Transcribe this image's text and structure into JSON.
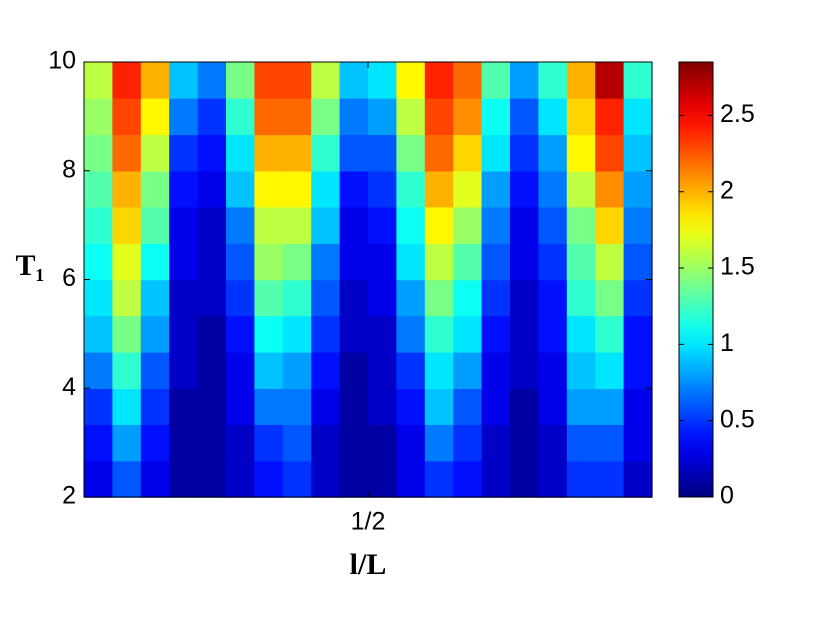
{
  "chart_data": {
    "type": "heatmap",
    "xlabel": "l/L",
    "ylabel": "T₁",
    "xlim": [
      0,
      1
    ],
    "ylim": [
      2,
      10
    ],
    "xticks": [
      {
        "value": 0.5,
        "label": "1/2"
      }
    ],
    "yticks": [
      2,
      4,
      6,
      8,
      10
    ],
    "x": [
      0.025,
      0.075,
      0.125,
      0.175,
      0.225,
      0.275,
      0.325,
      0.375,
      0.425,
      0.475,
      0.525,
      0.575,
      0.625,
      0.675,
      0.725,
      0.775,
      0.825,
      0.875,
      0.925,
      0.975
    ],
    "y": [
      2.33,
      3,
      3.67,
      4.33,
      5,
      5.67,
      6.33,
      7,
      7.67,
      8.33,
      9,
      9.67
    ],
    "z": [
      [
        0.3,
        0.6,
        0.3,
        0.1,
        0.1,
        0.2,
        0.4,
        0.5,
        0.2,
        0.1,
        0.1,
        0.3,
        0.5,
        0.4,
        0.2,
        0.1,
        0.2,
        0.5,
        0.5,
        0.2
      ],
      [
        0.4,
        0.8,
        0.4,
        0.1,
        0.1,
        0.2,
        0.5,
        0.6,
        0.2,
        0.1,
        0.1,
        0.3,
        0.7,
        0.5,
        0.2,
        0.1,
        0.2,
        0.6,
        0.6,
        0.3
      ],
      [
        0.5,
        1.0,
        0.5,
        0.1,
        0.1,
        0.3,
        0.7,
        0.7,
        0.3,
        0.1,
        0.2,
        0.4,
        0.9,
        0.6,
        0.3,
        0.1,
        0.3,
        0.8,
        0.8,
        0.3
      ],
      [
        0.7,
        1.2,
        0.6,
        0.2,
        0.1,
        0.3,
        0.9,
        0.8,
        0.4,
        0.1,
        0.2,
        0.5,
        1.0,
        0.8,
        0.3,
        0.2,
        0.3,
        0.9,
        1.0,
        0.4
      ],
      [
        0.9,
        1.4,
        0.8,
        0.2,
        0.1,
        0.4,
        1.1,
        1.0,
        0.5,
        0.2,
        0.2,
        0.7,
        1.2,
        1.0,
        0.4,
        0.2,
        0.4,
        1.0,
        1.2,
        0.4
      ],
      [
        1.0,
        1.6,
        0.9,
        0.2,
        0.2,
        0.5,
        1.3,
        1.2,
        0.6,
        0.2,
        0.3,
        0.8,
        1.4,
        1.1,
        0.5,
        0.2,
        0.4,
        1.2,
        1.4,
        0.5
      ],
      [
        1.1,
        1.7,
        1.1,
        0.3,
        0.2,
        0.6,
        1.5,
        1.4,
        0.7,
        0.3,
        0.3,
        1.0,
        1.6,
        1.3,
        0.6,
        0.3,
        0.5,
        1.3,
        1.6,
        0.6
      ],
      [
        1.2,
        1.9,
        1.3,
        0.3,
        0.2,
        0.7,
        1.6,
        1.6,
        0.9,
        0.3,
        0.4,
        1.1,
        1.8,
        1.5,
        0.7,
        0.3,
        0.6,
        1.4,
        1.9,
        0.7
      ],
      [
        1.3,
        2.0,
        1.4,
        0.4,
        0.3,
        0.9,
        1.8,
        1.8,
        1.0,
        0.4,
        0.5,
        1.2,
        2.0,
        1.7,
        0.8,
        0.4,
        0.7,
        1.6,
        2.1,
        0.8
      ],
      [
        1.4,
        2.2,
        1.6,
        0.5,
        0.4,
        1.0,
        2.0,
        2.0,
        1.2,
        0.6,
        0.6,
        1.4,
        2.2,
        1.9,
        1.0,
        0.5,
        0.8,
        1.8,
        2.3,
        0.9
      ],
      [
        1.5,
        2.3,
        1.8,
        0.7,
        0.5,
        1.2,
        2.2,
        2.2,
        1.4,
        0.7,
        0.8,
        1.6,
        2.3,
        2.1,
        1.1,
        0.6,
        1.0,
        1.9,
        2.4,
        1.0
      ],
      [
        1.6,
        2.4,
        2.0,
        0.9,
        0.7,
        1.4,
        2.3,
        2.3,
        1.6,
        0.9,
        1.0,
        1.8,
        2.4,
        2.2,
        1.3,
        0.8,
        1.2,
        2.0,
        2.7,
        1.2
      ]
    ],
    "colormap": "jet",
    "clim": [
      0,
      2.85
    ],
    "cticks": [
      0,
      0.5,
      1,
      1.5,
      2,
      2.5
    ]
  }
}
